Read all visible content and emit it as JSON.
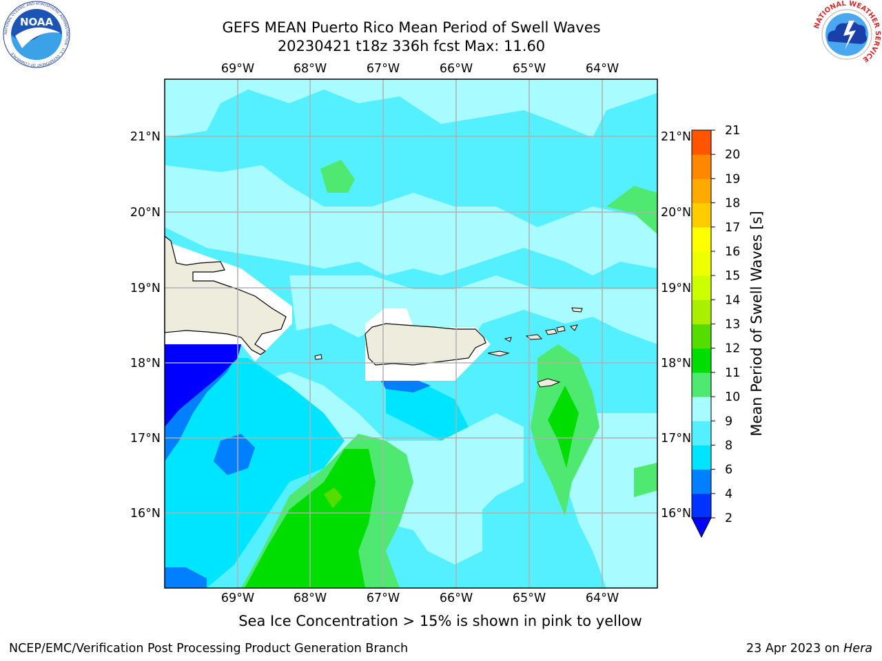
{
  "header": {
    "title_line1": "GEFS MEAN Puerto Rico Mean Period of Swell Waves",
    "title_line2": "20230421 t18z 336h fcst   Max: 11.60"
  },
  "logos": {
    "left": "NOAA",
    "left_ring": "NATIONAL OCEANIC AND ATMOSPHERIC ADMINISTRATION · U.S. DEPARTMENT OF COMMERCE",
    "right_ring": "NATIONAL WEATHER SERVICE"
  },
  "map": {
    "lon_labels": [
      "69°W",
      "68°W",
      "67°W",
      "66°W",
      "65°W",
      "64°W"
    ],
    "lat_labels": [
      "21°N",
      "20°N",
      "19°N",
      "18°N",
      "17°N",
      "16°N"
    ]
  },
  "colorbar": {
    "label": "Mean Period of Swell Waves [s]",
    "ticks": [
      "2",
      "4",
      "6",
      "8",
      "9",
      "10",
      "11",
      "12",
      "13",
      "14",
      "15",
      "16",
      "17",
      "18",
      "19",
      "20",
      "21"
    ],
    "colors": [
      "#0033ff",
      "#0080ff",
      "#00e5ff",
      "#55f0ff",
      "#a8fcff",
      "#4fe870",
      "#00dd00",
      "#55dd00",
      "#aaee00",
      "#ccff00",
      "#eeff00",
      "#ffff00",
      "#ffcc00",
      "#ffaa00",
      "#ff8800",
      "#ff5500",
      "#ff2200",
      "#ff0000"
    ],
    "below_color": "#0000ff"
  },
  "notes": {
    "sea_ice": "Sea Ice Concentration > 15% is shown in pink to yellow",
    "footer_left": "NCEP/EMC/Verification Post Processing Product Generation Branch",
    "footer_date": "23 Apr 2023 on ",
    "footer_host": "Hera"
  }
}
